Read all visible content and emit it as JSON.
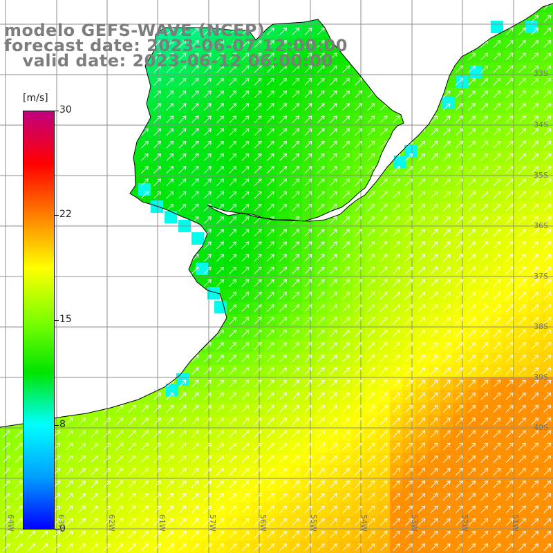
{
  "title": {
    "model": "modelo GEFS-WAVE (NCEP)",
    "forecast": "forecast date: 2023-06-07 12:00:00",
    "valid": "   valid date: 2023-06-12 06:00:00"
  },
  "colorbar": {
    "unit": "[m/s]",
    "min": 0,
    "max": 30,
    "ticks": [
      "30",
      "22",
      "15",
      "8",
      "0"
    ],
    "stops": [
      "#0000ff",
      "#00a0ff",
      "#00ffff",
      "#00e400",
      "#80ff00",
      "#ffff00",
      "#ff8000",
      "#ff0000",
      "#c00080"
    ]
  },
  "map": {
    "field": "wind speed",
    "arrow_direction": "toward NE",
    "lat_labels": [
      "33S",
      "34S",
      "35S",
      "36S",
      "37S",
      "38S",
      "39S",
      "40S"
    ],
    "lon_labels": [
      "64W",
      "63W",
      "62W",
      "61W",
      "57W",
      "56W",
      "55W",
      "54W",
      "53W",
      "52W",
      "51W"
    ],
    "coastline_color": "#000000",
    "grid_color": "#8c8c8c"
  }
}
